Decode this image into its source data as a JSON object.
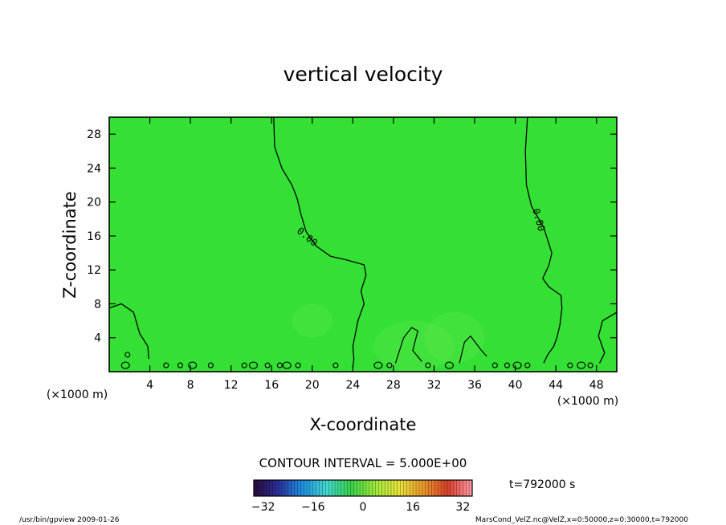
{
  "chart_data": {
    "type": "heatmap",
    "title": "vertical velocity",
    "xlabel": "X-coordinate",
    "ylabel": "Z-coordinate",
    "x_unit_label_left": "(×1000 m)",
    "x_unit_label_right": "(×1000 m)",
    "xlim": [
      0,
      50
    ],
    "ylim": [
      0,
      30
    ],
    "x_ticks": [
      4,
      8,
      12,
      16,
      20,
      24,
      28,
      32,
      36,
      40,
      44,
      48
    ],
    "y_ticks": [
      4,
      8,
      12,
      16,
      20,
      24,
      28
    ],
    "contour_interval_label": "CONTOUR INTERVAL = 5.000E+00",
    "contour_labels": [
      "0.00",
      "0.00"
    ],
    "zero_contour_left": {
      "x": [
        16.2,
        16.3,
        17.0,
        18.0,
        18.5,
        18.9,
        19.4,
        20.4,
        21.8,
        23.3,
        25.1,
        25.3,
        24.8,
        25.1,
        24.5,
        24.0,
        24.1,
        24.0
      ],
      "y": [
        30,
        26.5,
        24.0,
        22.0,
        20.5,
        18.5,
        16.5,
        14.8,
        13.6,
        13.2,
        12.6,
        11.4,
        9.5,
        8.0,
        6.0,
        3.0,
        1.5,
        0.5
      ]
    },
    "zero_contour_right": {
      "x": [
        41.2,
        41.0,
        41.1,
        41.6,
        42.8,
        43.6,
        43.3,
        42.7,
        43.3,
        44.5,
        44.6,
        44.4,
        44.1,
        43.8,
        43.2,
        42.8
      ],
      "y": [
        30,
        26.0,
        22.0,
        19.5,
        17.0,
        14.0,
        12.5,
        11.0,
        10.0,
        9.0,
        7.5,
        5.5,
        4.0,
        3.0,
        2.0,
        1.0
      ]
    },
    "colorbar": {
      "ticks": [
        -32,
        -16,
        0,
        16,
        32
      ],
      "range": [
        -35,
        35
      ],
      "colors": [
        "#2b0a3a",
        "#2a2f9a",
        "#1f8fe0",
        "#44d7d0",
        "#38d24a",
        "#9fe83c",
        "#e8e23a",
        "#e8962a",
        "#d8402a",
        "#ff9aa6"
      ]
    },
    "field_color": "#33e033",
    "grid": false,
    "legend": "none"
  },
  "time_label": "t=792000 s",
  "footer_left": "/usr/bin/gpview  2009-01-26",
  "footer_right": "MarsCond_VelZ.nc@VelZ,x=0:50000,z=0:30000,t=792000"
}
